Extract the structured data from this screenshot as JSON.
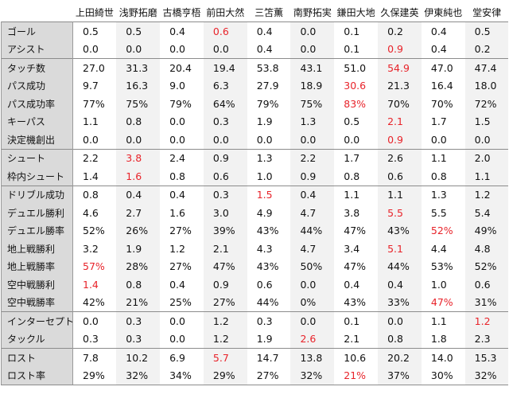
{
  "players": [
    "上田綺世",
    "浅野拓磨",
    "古橋亨梧",
    "前田大然",
    "三笘薫",
    "南野拓実",
    "鎌田大地",
    "久保建英",
    "伊東純也",
    "堂安律"
  ],
  "highlight_color": "#e8232a",
  "rows": [
    {
      "label": "ゴール",
      "group_start": true,
      "values": [
        "0.5",
        "0.5",
        "0.4",
        "0.6",
        "0.4",
        "0.0",
        "0.1",
        "0.2",
        "0.4",
        "0.5"
      ],
      "highlight": [
        3
      ]
    },
    {
      "label": "アシスト",
      "values": [
        "0.0",
        "0.0",
        "0.0",
        "0.0",
        "0.4",
        "0.0",
        "0.1",
        "0.9",
        "0.4",
        "0.2"
      ],
      "highlight": [
        7
      ]
    },
    {
      "label": "タッチ数",
      "group_start": true,
      "values": [
        "27.0",
        "31.3",
        "20.4",
        "19.4",
        "53.8",
        "43.1",
        "51.0",
        "54.9",
        "47.0",
        "47.4"
      ],
      "highlight": [
        7
      ]
    },
    {
      "label": "パス成功",
      "values": [
        "9.7",
        "16.3",
        "9.0",
        "6.3",
        "27.9",
        "18.9",
        "30.6",
        "21.3",
        "16.4",
        "18.0"
      ],
      "highlight": [
        6
      ]
    },
    {
      "label": "パス成功率",
      "values": [
        "77%",
        "75%",
        "79%",
        "64%",
        "79%",
        "75%",
        "83%",
        "70%",
        "70%",
        "72%"
      ],
      "highlight": [
        6
      ]
    },
    {
      "label": "キーパス",
      "values": [
        "1.1",
        "0.8",
        "0.0",
        "0.3",
        "1.9",
        "1.3",
        "0.5",
        "2.1",
        "1.7",
        "1.5"
      ],
      "highlight": [
        7
      ]
    },
    {
      "label": "決定機創出",
      "values": [
        "0.0",
        "0.0",
        "0.0",
        "0.0",
        "0.0",
        "0.0",
        "0.0",
        "0.9",
        "0.0",
        "0.0"
      ],
      "highlight": [
        7
      ]
    },
    {
      "label": "シュート",
      "group_start": true,
      "values": [
        "2.2",
        "3.8",
        "2.4",
        "0.9",
        "1.3",
        "2.2",
        "1.7",
        "2.6",
        "1.1",
        "2.0"
      ],
      "highlight": [
        1
      ]
    },
    {
      "label": "枠内シュート",
      "values": [
        "1.4",
        "1.6",
        "0.8",
        "0.6",
        "1.0",
        "0.9",
        "0.8",
        "0.6",
        "0.8",
        "1.1"
      ],
      "highlight": [
        1
      ]
    },
    {
      "label": "ドリブル成功",
      "group_start": true,
      "values": [
        "0.8",
        "0.4",
        "0.4",
        "0.3",
        "1.5",
        "0.4",
        "1.1",
        "1.1",
        "1.3",
        "1.2"
      ],
      "highlight": [
        4
      ]
    },
    {
      "label": "デュエル勝利",
      "values": [
        "4.6",
        "2.7",
        "1.6",
        "3.0",
        "4.9",
        "4.7",
        "3.8",
        "5.5",
        "5.5",
        "5.4"
      ],
      "highlight": [
        7
      ]
    },
    {
      "label": "デュエル勝率",
      "values": [
        "52%",
        "26%",
        "27%",
        "39%",
        "43%",
        "44%",
        "47%",
        "43%",
        "52%",
        "49%"
      ],
      "highlight": [
        8
      ]
    },
    {
      "label": "地上戦勝利",
      "values": [
        "3.2",
        "1.9",
        "1.2",
        "2.1",
        "4.3",
        "4.7",
        "3.4",
        "5.1",
        "4.4",
        "4.8"
      ],
      "highlight": [
        7
      ]
    },
    {
      "label": "地上戦勝率",
      "values": [
        "57%",
        "28%",
        "27%",
        "47%",
        "43%",
        "50%",
        "47%",
        "44%",
        "53%",
        "52%"
      ],
      "highlight": [
        0
      ]
    },
    {
      "label": "空中戦勝利",
      "values": [
        "1.4",
        "0.8",
        "0.4",
        "0.9",
        "0.6",
        "0.0",
        "0.4",
        "0.4",
        "1.0",
        "0.6"
      ],
      "highlight": [
        0
      ]
    },
    {
      "label": "空中戦勝率",
      "values": [
        "42%",
        "21%",
        "25%",
        "27%",
        "44%",
        "0%",
        "43%",
        "33%",
        "47%",
        "31%"
      ],
      "highlight": [
        8
      ]
    },
    {
      "label": "インターセプト",
      "group_start": true,
      "values": [
        "0.0",
        "0.3",
        "0.0",
        "1.2",
        "0.3",
        "0.0",
        "0.1",
        "0.0",
        "1.1",
        "1.2"
      ],
      "highlight": [
        9
      ]
    },
    {
      "label": "タックル",
      "values": [
        "0.3",
        "0.3",
        "0.0",
        "1.2",
        "1.9",
        "2.6",
        "2.1",
        "0.8",
        "1.8",
        "2.3"
      ],
      "highlight": [
        5
      ]
    },
    {
      "label": "ロスト",
      "group_start": true,
      "values": [
        "7.8",
        "10.2",
        "6.9",
        "5.7",
        "14.7",
        "13.8",
        "10.6",
        "20.2",
        "14.0",
        "15.3"
      ],
      "highlight": [
        3
      ]
    },
    {
      "label": "ロスト率",
      "values": [
        "29%",
        "32%",
        "34%",
        "29%",
        "27%",
        "32%",
        "21%",
        "37%",
        "30%",
        "32%"
      ],
      "highlight": [
        6
      ]
    }
  ]
}
